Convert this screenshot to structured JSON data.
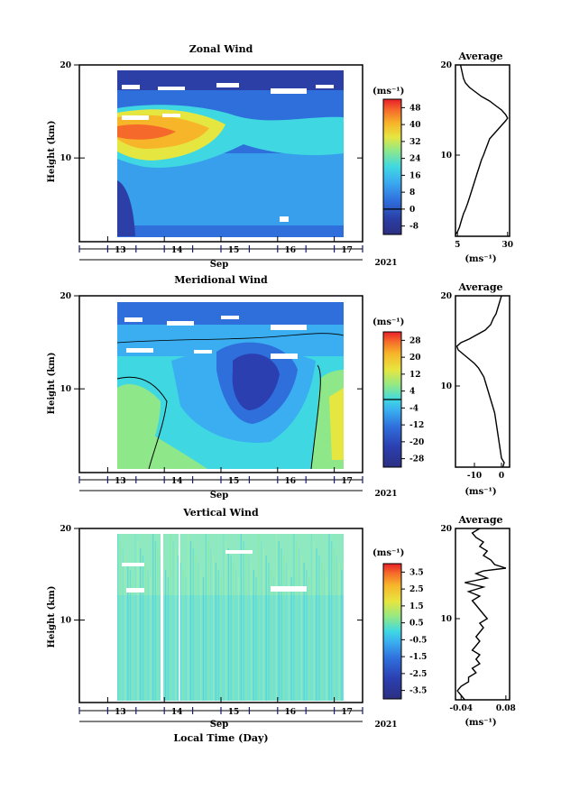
{
  "figure": {
    "xlabel": "Local Time (Day)",
    "year": "2021",
    "month": "Sep",
    "x_ticks": [
      "13",
      "14",
      "15",
      "16",
      "17"
    ],
    "units": "(ms⁻¹)"
  },
  "chart_data": [
    {
      "type": "heatmap",
      "title": "Zonal Wind",
      "ylabel": "Height (km)",
      "xlabel": "Sep",
      "year_label": "2021",
      "x_range_days": [
        12.5,
        17.5
      ],
      "data_x_range_days": [
        13.15,
        17.3
      ],
      "ylim": [
        1,
        20
      ],
      "y_ticks": [
        10,
        20
      ],
      "colorbar": {
        "label": "(ms⁻¹)",
        "ticks": [
          -8,
          0,
          8,
          16,
          24,
          32,
          40,
          48
        ],
        "range": [
          -12,
          52
        ],
        "zero_line": true
      },
      "description_values": {
        "jet_core_height_km": 14,
        "jet_core_speed": 40,
        "lower_left_min": -8
      },
      "profile": {
        "title": "Average",
        "xlabel": "(ms⁻¹)",
        "x_ticks": [
          5,
          30
        ],
        "xlim": [
          4,
          31
        ],
        "ylim": [
          1,
          20
        ],
        "y_ticks": [
          10,
          20
        ],
        "points": [
          [
            4,
            1.2
          ],
          [
            5,
            1.5
          ],
          [
            6,
            2.0
          ],
          [
            7,
            2.8
          ],
          [
            8,
            3.5
          ],
          [
            9,
            4.0
          ],
          [
            10,
            4.6
          ],
          [
            11,
            5.3
          ],
          [
            12,
            6.0
          ],
          [
            13,
            6.7
          ],
          [
            14,
            7.4
          ],
          [
            15,
            8.1
          ],
          [
            16,
            8.8
          ],
          [
            17,
            9.5
          ],
          [
            18,
            10.0
          ],
          [
            19,
            10.6
          ],
          [
            20,
            11.2
          ],
          [
            21,
            11.8
          ],
          [
            23,
            12.3
          ],
          [
            25,
            12.8
          ],
          [
            27,
            13.3
          ],
          [
            29,
            13.8
          ],
          [
            30,
            14.1
          ],
          [
            29,
            14.5
          ],
          [
            27,
            15.0
          ],
          [
            24,
            15.5
          ],
          [
            21,
            16.0
          ],
          [
            17,
            16.5
          ],
          [
            14,
            17.0
          ],
          [
            11,
            17.5
          ],
          [
            9,
            18.0
          ],
          [
            8,
            18.5
          ],
          [
            7.5,
            19.0
          ],
          [
            7,
            19.5
          ],
          [
            6.5,
            20.0
          ]
        ]
      }
    },
    {
      "type": "heatmap",
      "title": "Meridional Wind",
      "ylabel": "Height (km)",
      "xlabel": "Sep",
      "year_label": "2021",
      "x_range_days": [
        12.5,
        17.5
      ],
      "data_x_range_days": [
        13.15,
        17.3
      ],
      "ylim": [
        1,
        20
      ],
      "y_ticks": [
        10,
        20
      ],
      "colorbar": {
        "label": "(ms⁻¹)",
        "ticks": [
          -28,
          -20,
          -12,
          -4,
          4,
          12,
          20,
          28
        ],
        "range": [
          -32,
          32
        ],
        "zero_line": true
      },
      "description_values": {
        "core_min_height_km": 10,
        "core_min_speed": -24
      },
      "profile": {
        "title": "Average",
        "xlabel": "(ms⁻¹)",
        "x_ticks": [
          -10,
          0
        ],
        "xlim": [
          -17,
          3
        ],
        "ylim": [
          1,
          20
        ],
        "y_ticks": [
          10,
          20
        ],
        "points": [
          [
            0.5,
            1.0
          ],
          [
            1,
            1.5
          ],
          [
            0,
            2.0
          ],
          [
            -0.5,
            3.0
          ],
          [
            -1,
            4.0
          ],
          [
            -1.5,
            5.0
          ],
          [
            -2,
            6.0
          ],
          [
            -2.5,
            7.0
          ],
          [
            -3,
            7.5
          ],
          [
            -3.5,
            8.0
          ],
          [
            -4,
            8.5
          ],
          [
            -4.5,
            9.0
          ],
          [
            -5,
            9.5
          ],
          [
            -5.5,
            10.0
          ],
          [
            -6,
            10.5
          ],
          [
            -6.5,
            11.0
          ],
          [
            -7.5,
            11.5
          ],
          [
            -8.5,
            12.0
          ],
          [
            -10,
            12.5
          ],
          [
            -12,
            13.0
          ],
          [
            -14,
            13.5
          ],
          [
            -16,
            14.0
          ],
          [
            -16.5,
            14.4
          ],
          [
            -15,
            14.8
          ],
          [
            -12,
            15.2
          ],
          [
            -9,
            15.7
          ],
          [
            -6,
            16.2
          ],
          [
            -4,
            16.8
          ],
          [
            -3,
            17.5
          ],
          [
            -2,
            18.0
          ],
          [
            -1.5,
            18.5
          ],
          [
            -1,
            19.0
          ],
          [
            -0.5,
            19.5
          ],
          [
            0,
            20.0
          ]
        ]
      }
    },
    {
      "type": "heatmap",
      "title": "Vertical Wind",
      "ylabel": "Height (km)",
      "xlabel": "Sep",
      "year_label": "2021",
      "x_range_days": [
        12.5,
        17.5
      ],
      "data_x_range_days": [
        13.15,
        17.3
      ],
      "ylim": [
        1,
        20
      ],
      "y_ticks": [
        10,
        20
      ],
      "colorbar": {
        "label": "(ms⁻¹)",
        "ticks": [
          -3.5,
          -2.5,
          -1.5,
          -0.5,
          0.5,
          1.5,
          2.5,
          3.5
        ],
        "range": [
          -4,
          4
        ],
        "zero_line": false
      },
      "profile": {
        "title": "Average",
        "xlabel": "(ms⁻¹)",
        "x_ticks": [
          -0.04,
          0.08
        ],
        "x_tick_labels": [
          "-0.04",
          "0.08"
        ],
        "xlim": [
          -0.055,
          0.09
        ],
        "ylim": [
          1,
          20
        ],
        "y_ticks": [
          10,
          20
        ],
        "points": [
          [
            -0.03,
            1.0
          ],
          [
            -0.04,
            1.5
          ],
          [
            -0.05,
            2.0
          ],
          [
            -0.04,
            2.5
          ],
          [
            -0.02,
            3.0
          ],
          [
            -0.02,
            3.5
          ],
          [
            0.0,
            4.0
          ],
          [
            -0.01,
            4.5
          ],
          [
            0.01,
            5.0
          ],
          [
            0.0,
            5.5
          ],
          [
            0.01,
            6.0
          ],
          [
            -0.01,
            6.5
          ],
          [
            0.0,
            7.0
          ],
          [
            0.01,
            7.5
          ],
          [
            0.0,
            8.0
          ],
          [
            0.01,
            8.5
          ],
          [
            0.02,
            9.0
          ],
          [
            0.01,
            9.5
          ],
          [
            0.03,
            10.0
          ],
          [
            0.02,
            10.5
          ],
          [
            0.01,
            11.0
          ],
          [
            0.0,
            11.5
          ],
          [
            -0.01,
            12.0
          ],
          [
            0.01,
            12.5
          ],
          [
            -0.02,
            13.0
          ],
          [
            0.02,
            13.5
          ],
          [
            -0.03,
            14.0
          ],
          [
            0.03,
            14.5
          ],
          [
            0.0,
            15.0
          ],
          [
            0.02,
            15.3
          ],
          [
            0.08,
            15.6
          ],
          [
            0.05,
            16.0
          ],
          [
            0.04,
            16.5
          ],
          [
            0.02,
            17.0
          ],
          [
            0.03,
            17.5
          ],
          [
            0.01,
            18.0
          ],
          [
            0.02,
            18.5
          ],
          [
            0.0,
            19.0
          ],
          [
            -0.01,
            19.5
          ],
          [
            0.01,
            20.0
          ]
        ]
      }
    }
  ]
}
